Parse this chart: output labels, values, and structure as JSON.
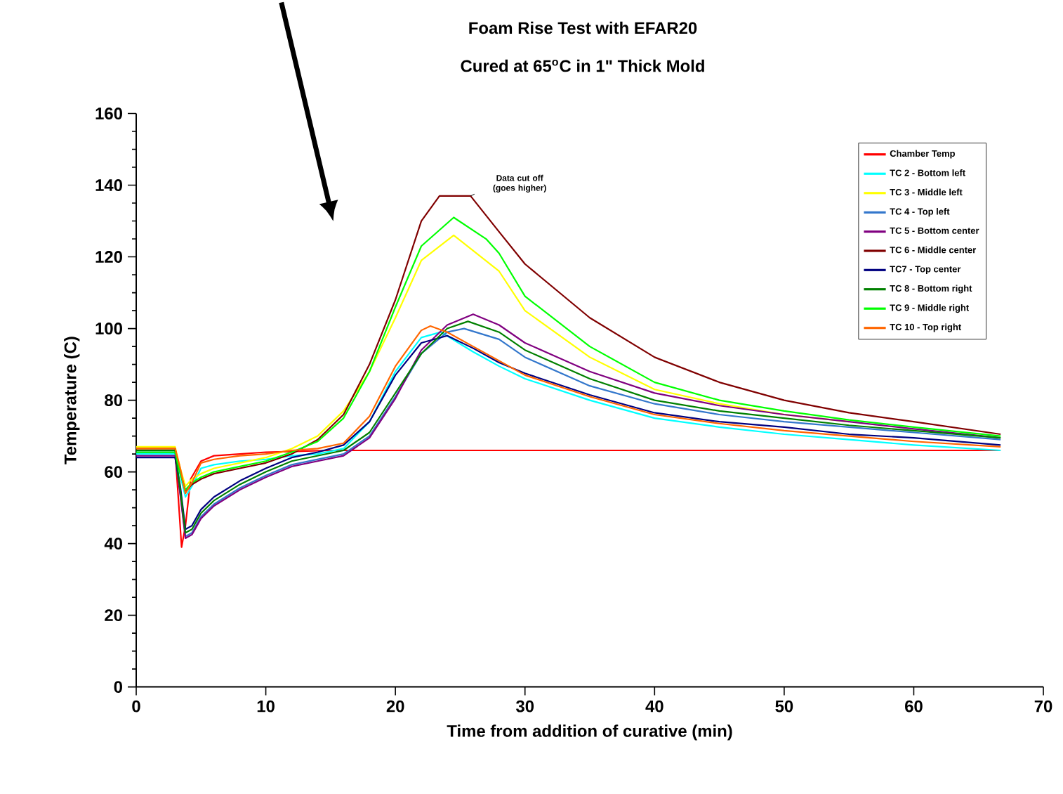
{
  "chart_data": {
    "type": "line",
    "title": "Foam Rise Test with EFAR20",
    "subtitle": "Cured at 65$^{o}$C in 1\" Thick Mold",
    "xlabel": "Time from addition of curative (min)",
    "ylabel": "Temperature (C)",
    "xlim": [
      0,
      70
    ],
    "ylim": [
      0,
      160
    ],
    "xticks": [
      0,
      10,
      20,
      30,
      40,
      50,
      60,
      70
    ],
    "yticks": [
      0,
      20,
      40,
      60,
      80,
      100,
      120,
      140,
      160
    ],
    "grid": false,
    "legend": "top right",
    "marker": "none",
    "line_style": "solid",
    "annotations": [
      {
        "text": "Data cut off (goes higher)",
        "x": 25.8,
        "y": 137
      }
    ],
    "series": [
      {
        "name": "Chamber Temp",
        "color": "#ff0000",
        "x": [
          0,
          3,
          3.3,
          3.5,
          3.8,
          4.2,
          5,
          6,
          8,
          10,
          15,
          20,
          30,
          40,
          50,
          60,
          66.7
        ],
        "values": [
          66,
          66,
          50,
          39,
          45,
          58,
          63,
          64.5,
          65,
          65.5,
          66,
          66,
          66,
          66,
          66,
          66,
          66
        ]
      },
      {
        "name": "TC 2 - Bottom left",
        "color": "#00ffff",
        "x": [
          0,
          3,
          3.4,
          3.8,
          4.3,
          5,
          6,
          8,
          10,
          12,
          14,
          16,
          18,
          20,
          22,
          23.5,
          26,
          28,
          30,
          35,
          40,
          45,
          50,
          55,
          60,
          66.7
        ],
        "values": [
          65,
          65,
          59,
          53,
          56,
          61,
          62,
          63,
          63.5,
          64.5,
          65,
          66.5,
          74,
          88,
          97.5,
          99,
          93.5,
          89.5,
          86,
          80,
          75,
          72.5,
          70.5,
          69,
          67.5,
          66
        ]
      },
      {
        "name": "TC 3 - Middle left",
        "color": "#ffff00",
        "x": [
          0,
          3,
          3.4,
          3.8,
          4.3,
          5,
          6,
          8,
          10,
          12,
          14,
          16,
          18,
          20,
          22,
          24.5,
          28,
          30,
          35,
          40,
          45,
          50,
          55
        ],
        "values": [
          67,
          67,
          61,
          56,
          58,
          59.5,
          61,
          62.5,
          64,
          66.5,
          70,
          77,
          88,
          103,
          119,
          126,
          116,
          105,
          92,
          83,
          79,
          76,
          74
        ]
      },
      {
        "name": "TC 4 - Top left",
        "color": "#3377cc",
        "x": [
          0,
          3,
          3.4,
          3.8,
          4.3,
          5,
          6,
          8,
          10,
          12,
          14,
          16,
          18,
          20,
          22,
          24,
          25.3,
          28,
          30,
          35,
          40,
          45,
          50,
          55,
          60,
          66.7
        ],
        "values": [
          65.5,
          65.5,
          54,
          42,
          43,
          47.5,
          51,
          55.5,
          59,
          62,
          63.5,
          65,
          70,
          81,
          93,
          99,
          100,
          97,
          92,
          84,
          79,
          76,
          74,
          72.5,
          71,
          69
        ]
      },
      {
        "name": "TC 5 - Bottom center",
        "color": "#800080",
        "x": [
          0,
          3,
          3.4,
          3.8,
          4.3,
          5,
          6,
          8,
          10,
          12,
          14,
          16,
          18,
          20,
          22,
          24,
          26,
          28,
          30,
          35,
          40,
          45,
          50,
          55,
          60,
          66.7
        ],
        "values": [
          64.5,
          64.5,
          53.5,
          41.5,
          42.5,
          47,
          50.5,
          55,
          58.5,
          61.5,
          63,
          64.5,
          69.5,
          80.5,
          94,
          101,
          104,
          101,
          96,
          88,
          82,
          78.5,
          76,
          74,
          72,
          69.5
        ]
      },
      {
        "name": "TC 6 - Middle center",
        "color": "#800000",
        "x": [
          0,
          3,
          3.4,
          3.8,
          4.3,
          5,
          6,
          8,
          10,
          12,
          14,
          16,
          18,
          20,
          22,
          23.4,
          25.8,
          28,
          30,
          35,
          40,
          45,
          50,
          55,
          60,
          66.7
        ],
        "values": [
          66.5,
          66.5,
          60,
          54.5,
          56.5,
          58,
          59.5,
          61,
          62.5,
          65,
          69,
          76,
          90,
          108,
          130,
          137,
          137,
          127,
          118,
          103,
          92,
          85,
          80,
          76.5,
          74,
          70.5
        ]
      },
      {
        "name": "TC7 - Top center",
        "color": "#000080",
        "x": [
          0,
          3,
          3.4,
          3.8,
          4.3,
          5,
          6,
          8,
          10,
          12,
          14,
          16,
          18,
          20,
          22,
          24,
          26,
          28,
          30,
          35,
          40,
          45,
          50,
          55,
          60,
          66.7
        ],
        "values": [
          64,
          64,
          56,
          44,
          45,
          49.5,
          53,
          57.5,
          61,
          64,
          65.5,
          67.5,
          74,
          87,
          96,
          98,
          94.5,
          90.5,
          87.5,
          81.5,
          76.5,
          74,
          72.5,
          70.5,
          69.5,
          67.5
        ]
      },
      {
        "name": "TC 8 - Bottom right",
        "color": "#008000",
        "x": [
          0,
          3,
          3.4,
          3.8,
          4.3,
          5,
          6,
          8,
          10,
          12,
          14,
          16,
          18,
          20,
          22,
          24,
          25.6,
          28,
          30,
          35,
          40,
          45,
          50,
          55,
          60,
          66.7
        ],
        "values": [
          66,
          66,
          55,
          43,
          44,
          48.5,
          52,
          56.5,
          60,
          63,
          64.5,
          66,
          71,
          82,
          93,
          100,
          102,
          99,
          94,
          86,
          80,
          77,
          75,
          73,
          71.5,
          69.5
        ]
      },
      {
        "name": "TC 9 - Middle right",
        "color": "#00ff00",
        "x": [
          0,
          3,
          3.4,
          3.8,
          4.3,
          5,
          6,
          8,
          10,
          12,
          14,
          16,
          18,
          20,
          22,
          24.5,
          27,
          28,
          30,
          35,
          40,
          45,
          50,
          55,
          60,
          66.7
        ],
        "values": [
          65.5,
          65.5,
          59.5,
          55,
          57,
          58.5,
          60,
          61.5,
          63,
          65.5,
          68.5,
          75,
          88,
          106,
          123,
          131,
          125,
          121,
          109,
          95,
          85,
          80,
          77,
          74.5,
          72.5,
          70
        ]
      },
      {
        "name": "TC 10 - Top right",
        "color": "#ff6600",
        "x": [
          0,
          3,
          3.4,
          3.8,
          4.3,
          5,
          6,
          8,
          10,
          12,
          14,
          16,
          18,
          20,
          22,
          22.7,
          24,
          26,
          28,
          30,
          35,
          40,
          45,
          50,
          55,
          60,
          66.7
        ],
        "values": [
          66.5,
          66.5,
          61,
          54,
          57,
          62.5,
          63.5,
          64.5,
          65,
          66,
          66.5,
          68,
          75.5,
          89.5,
          99.5,
          100.7,
          99,
          95,
          91,
          87,
          81,
          76,
          73.5,
          71.5,
          70,
          68.5,
          67
        ]
      }
    ]
  }
}
